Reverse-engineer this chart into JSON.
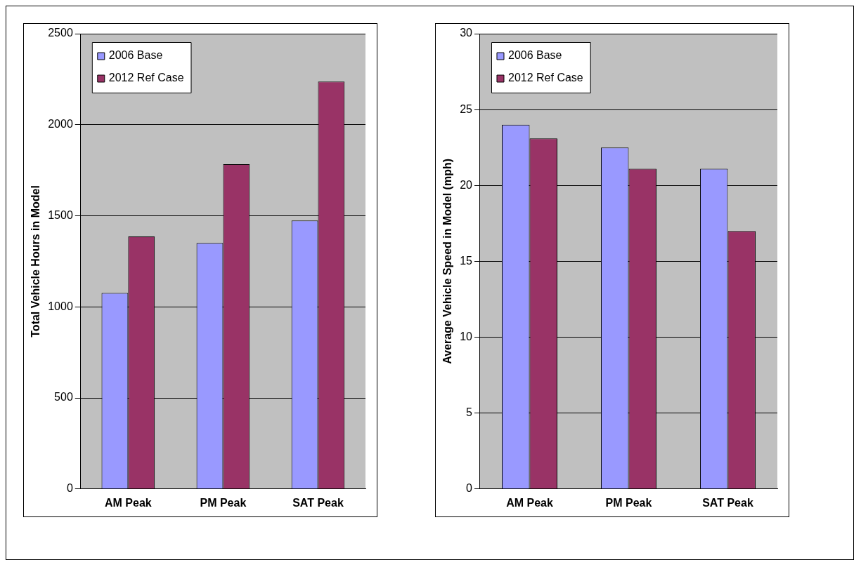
{
  "chart_data": [
    {
      "type": "bar",
      "ylabel": "Total Vehicle Hours in Model",
      "categories": [
        "AM Peak",
        "PM Peak",
        "SAT Peak"
      ],
      "series": [
        {
          "name": "2006 Base",
          "color": "#9999ff",
          "values": [
            1076,
            1351,
            1474
          ]
        },
        {
          "name": "2012 Ref Case",
          "color": "#993366",
          "values": [
            1386,
            1783,
            2237
          ]
        }
      ],
      "ylim": [
        0,
        2500
      ],
      "yticks": [
        0,
        500,
        1000,
        1500,
        2000,
        2500
      ],
      "grid": "y",
      "legend": "top left"
    },
    {
      "type": "bar",
      "ylabel": "Average Vehicle Speed in Model (mph)",
      "categories": [
        "AM Peak",
        "PM Peak",
        "SAT Peak"
      ],
      "series": [
        {
          "name": "2006 Base",
          "color": "#9999ff",
          "values": [
            24.0,
            22.5,
            21.1
          ]
        },
        {
          "name": "2012 Ref Case",
          "color": "#993366",
          "values": [
            23.1,
            21.1,
            17.0
          ]
        }
      ],
      "ylim": [
        0,
        30
      ],
      "yticks": [
        0,
        5,
        10,
        15,
        20,
        25,
        30
      ],
      "grid": "y",
      "legend": "top left"
    }
  ]
}
